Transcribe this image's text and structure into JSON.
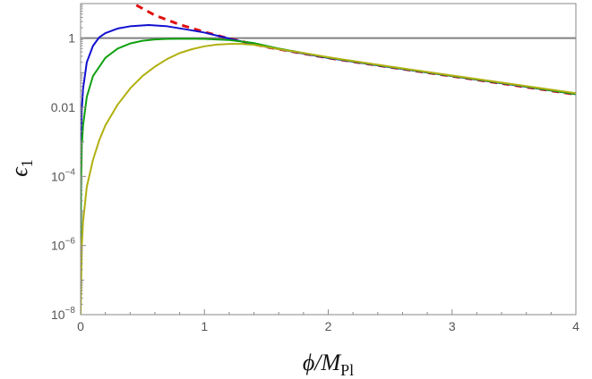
{
  "chart_data": {
    "type": "line",
    "xlabel": {
      "main": "ϕ/M",
      "sub": "Pl"
    },
    "ylabel": {
      "main": "ϵ",
      "sub": "1"
    },
    "xlim": [
      0,
      4
    ],
    "ylim": [
      1e-08,
      10
    ],
    "yscale": "log",
    "grid": false,
    "legend": "none",
    "xticks": [
      {
        "value": 0,
        "label": "0"
      },
      {
        "value": 1,
        "label": "1"
      },
      {
        "value": 2,
        "label": "2"
      },
      {
        "value": 3,
        "label": "3"
      },
      {
        "value": 4,
        "label": "4"
      }
    ],
    "yticks": [
      {
        "value": 1,
        "label": "1"
      },
      {
        "value": 0.01,
        "label": "0.01"
      },
      {
        "value": 0.0001,
        "base": "10",
        "exp": "−4"
      },
      {
        "value": 1e-06,
        "base": "10",
        "exp": "−6"
      },
      {
        "value": 1e-08,
        "base": "10",
        "exp": "−8"
      }
    ],
    "series": [
      {
        "color": "#808080",
        "dash": "solid",
        "points": [
          [
            0,
            1
          ],
          [
            4,
            1
          ]
        ]
      },
      {
        "color": "#e01010",
        "dash": "dashed",
        "points": [
          [
            0.45,
            9
          ],
          [
            0.6,
            4.6
          ],
          [
            0.8,
            2.47
          ],
          [
            1.0,
            1.51
          ],
          [
            1.2,
            0.97
          ],
          [
            1.5,
            0.555
          ],
          [
            2.0,
            0.267
          ],
          [
            2.5,
            0.144
          ],
          [
            3.0,
            0.0792
          ],
          [
            3.5,
            0.0433
          ],
          [
            4.0,
            0.0235
          ]
        ]
      },
      {
        "color": "#1010d0",
        "dash": "solid",
        "points": [
          [
            0.0,
            1e-08
          ],
          [
            0.002,
            0.0002
          ],
          [
            0.005,
            0.002
          ],
          [
            0.01,
            0.009
          ],
          [
            0.02,
            0.035
          ],
          [
            0.05,
            0.2
          ],
          [
            0.1,
            0.6
          ],
          [
            0.15,
            1.05
          ],
          [
            0.2,
            1.4
          ],
          [
            0.3,
            1.9
          ],
          [
            0.4,
            2.2
          ],
          [
            0.55,
            2.4
          ],
          [
            0.7,
            2.2
          ],
          [
            0.85,
            1.8
          ],
          [
            1.0,
            1.45
          ],
          [
            1.2,
            0.97
          ],
          [
            1.5,
            0.555
          ],
          [
            2.0,
            0.267
          ],
          [
            2.5,
            0.144
          ],
          [
            3.0,
            0.08
          ],
          [
            3.5,
            0.044
          ],
          [
            4.0,
            0.0238
          ]
        ]
      },
      {
        "color": "#10a010",
        "dash": "solid",
        "points": [
          [
            0.0,
            1e-08
          ],
          [
            0.003,
            5e-05
          ],
          [
            0.01,
            0.0008
          ],
          [
            0.02,
            0.003
          ],
          [
            0.05,
            0.02
          ],
          [
            0.1,
            0.08
          ],
          [
            0.2,
            0.27
          ],
          [
            0.3,
            0.5
          ],
          [
            0.4,
            0.7
          ],
          [
            0.5,
            0.84
          ],
          [
            0.6,
            0.92
          ],
          [
            0.7,
            0.95
          ],
          [
            0.8,
            0.96
          ],
          [
            0.9,
            0.96
          ],
          [
            1.0,
            0.95
          ],
          [
            1.2,
            0.88
          ],
          [
            1.4,
            0.72
          ],
          [
            1.6,
            0.5
          ],
          [
            1.8,
            0.37
          ],
          [
            2.0,
            0.275
          ],
          [
            2.5,
            0.147
          ],
          [
            3.0,
            0.081
          ],
          [
            3.5,
            0.045
          ],
          [
            4.0,
            0.024
          ]
        ]
      },
      {
        "color": "#b0b010",
        "dash": "solid",
        "points": [
          [
            0.0,
            1e-08
          ],
          [
            0.01,
            1e-06
          ],
          [
            0.02,
            5e-06
          ],
          [
            0.05,
            5e-05
          ],
          [
            0.1,
            0.0003
          ],
          [
            0.15,
            0.0011
          ],
          [
            0.2,
            0.003
          ],
          [
            0.3,
            0.012
          ],
          [
            0.4,
            0.035
          ],
          [
            0.5,
            0.08
          ],
          [
            0.6,
            0.15
          ],
          [
            0.7,
            0.25
          ],
          [
            0.8,
            0.37
          ],
          [
            0.9,
            0.48
          ],
          [
            1.0,
            0.58
          ],
          [
            1.1,
            0.65
          ],
          [
            1.2,
            0.68
          ],
          [
            1.3,
            0.68
          ],
          [
            1.4,
            0.64
          ],
          [
            1.5,
            0.56
          ],
          [
            1.6,
            0.48
          ],
          [
            1.8,
            0.37
          ],
          [
            2.0,
            0.28
          ],
          [
            2.5,
            0.15
          ],
          [
            3.0,
            0.083
          ],
          [
            3.5,
            0.046
          ],
          [
            4.0,
            0.0255
          ]
        ]
      }
    ]
  }
}
